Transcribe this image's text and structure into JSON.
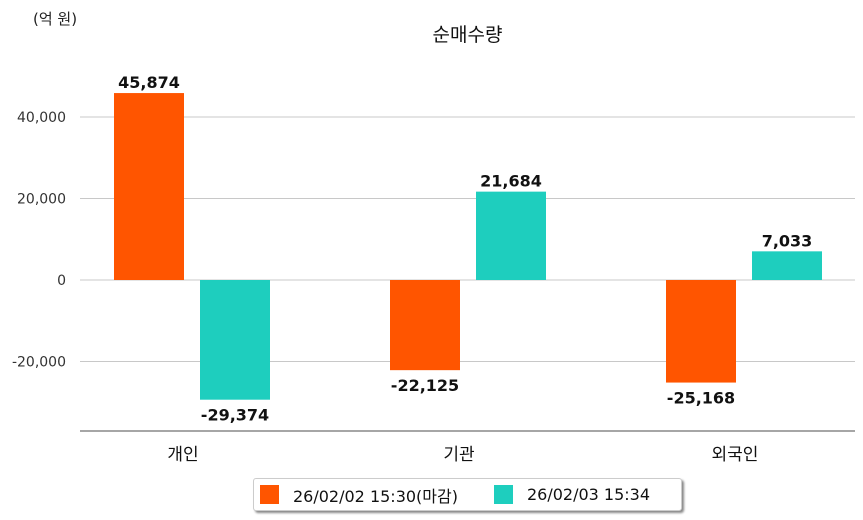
{
  "chart_data": {
    "type": "bar",
    "title": "순매수량",
    "ylabel": "(억 원)",
    "xlabel": "",
    "categories": [
      "개인",
      "기관",
      "외국인"
    ],
    "series": [
      {
        "name": "26/02/02 15:30(마감)",
        "color": "#FF5500",
        "values": [
          45874,
          -22125,
          -25168
        ],
        "labels": [
          "45,874",
          "-22,125",
          "-25,168"
        ]
      },
      {
        "name": "26/02/03 15:34",
        "color": "#1ECEBE",
        "values": [
          -29374,
          21684,
          7033
        ],
        "labels": [
          "-29,374",
          "21,684",
          "7,033"
        ]
      }
    ],
    "yticks": [
      40000,
      20000,
      0,
      -20000
    ],
    "ytick_labels": [
      "40,000",
      "20,000",
      "0",
      "-20,000"
    ],
    "ylim": [
      -37000,
      55000
    ],
    "grid": true,
    "legend": "bottom-center"
  }
}
